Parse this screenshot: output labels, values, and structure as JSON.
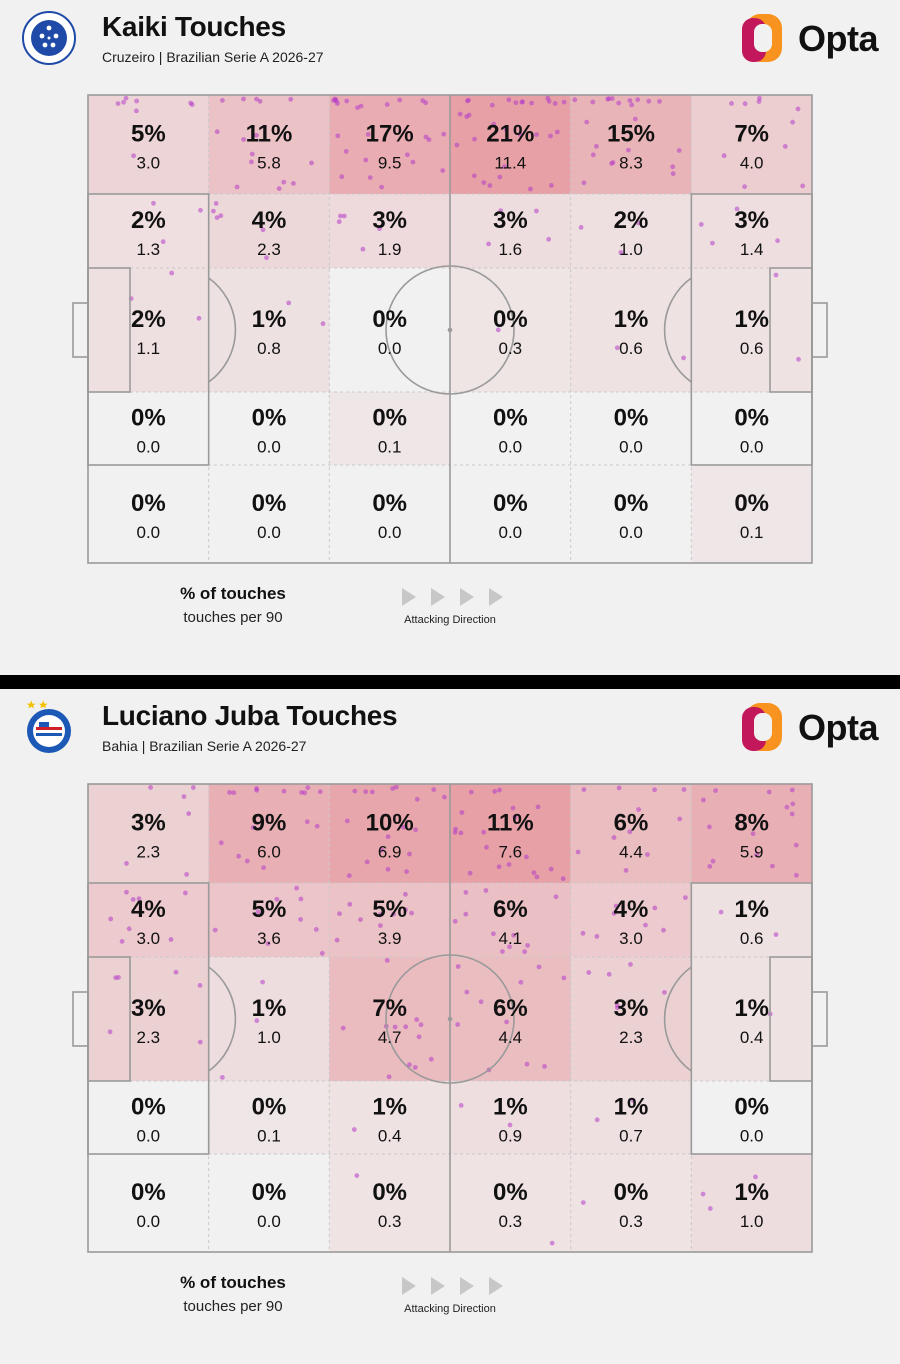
{
  "colors": {
    "background": "#f1f1f1",
    "heat": "#e0707a",
    "dot": "#b53cc9",
    "line": "#9a9a9a",
    "opta_orange": "#f7931e",
    "opta_magenta": "#c2185b"
  },
  "panels": [
    {
      "title": "Kaiki Touches",
      "subtitle": "Cruzeiro | Brazilian Serie A 2026-27",
      "logo_text": "Opta",
      "crest_icon": "cruzeiro-crest-icon",
      "legend_main": "% of touches",
      "legend_sub": "touches per 90",
      "direction_label": "Attacking Direction",
      "chart_data": {
        "type": "heatmap",
        "rows": 5,
        "cols": 6,
        "pct": [
          [
            "5%",
            "11%",
            "17%",
            "21%",
            "15%",
            "7%"
          ],
          [
            "2%",
            "4%",
            "3%",
            "3%",
            "2%",
            "3%"
          ],
          [
            "2%",
            "1%",
            "0%",
            "0%",
            "1%",
            "1%"
          ],
          [
            "0%",
            "0%",
            "0%",
            "0%",
            "0%",
            "0%"
          ],
          [
            "0%",
            "0%",
            "0%",
            "0%",
            "0%",
            "0%"
          ]
        ],
        "per90": [
          [
            "3.0",
            "5.8",
            "9.5",
            "11.4",
            "8.3",
            "4.0"
          ],
          [
            "1.3",
            "2.3",
            "1.9",
            "1.6",
            "1.0",
            "1.4"
          ],
          [
            "1.1",
            "0.8",
            "0.0",
            "0.3",
            "0.6",
            "0.6"
          ],
          [
            "0.0",
            "0.0",
            "0.1",
            "0.0",
            "0.0",
            "0.0"
          ],
          [
            "0.0",
            "0.0",
            "0.0",
            "0.0",
            "0.0",
            "0.1"
          ]
        ]
      }
    },
    {
      "title": "Luciano Juba Touches",
      "subtitle": "Bahia | Brazilian Serie A 2026-27",
      "logo_text": "Opta",
      "crest_icon": "bahia-crest-icon",
      "legend_main": "% of touches",
      "legend_sub": "touches per 90",
      "direction_label": "Attacking Direction",
      "chart_data": {
        "type": "heatmap",
        "rows": 5,
        "cols": 6,
        "pct": [
          [
            "3%",
            "9%",
            "10%",
            "11%",
            "6%",
            "8%"
          ],
          [
            "4%",
            "5%",
            "5%",
            "6%",
            "4%",
            "1%"
          ],
          [
            "3%",
            "1%",
            "7%",
            "6%",
            "3%",
            "1%"
          ],
          [
            "0%",
            "0%",
            "1%",
            "1%",
            "1%",
            "0%"
          ],
          [
            "0%",
            "0%",
            "0%",
            "0%",
            "0%",
            "1%"
          ]
        ],
        "per90": [
          [
            "2.3",
            "6.0",
            "6.9",
            "7.6",
            "4.4",
            "5.9"
          ],
          [
            "3.0",
            "3.6",
            "3.9",
            "4.1",
            "3.0",
            "0.6"
          ],
          [
            "2.3",
            "1.0",
            "4.7",
            "4.4",
            "2.3",
            "0.4"
          ],
          [
            "0.0",
            "0.1",
            "0.4",
            "0.9",
            "0.7",
            "0.0"
          ],
          [
            "0.0",
            "0.0",
            "0.3",
            "0.3",
            "0.3",
            "1.0"
          ]
        ]
      }
    }
  ]
}
